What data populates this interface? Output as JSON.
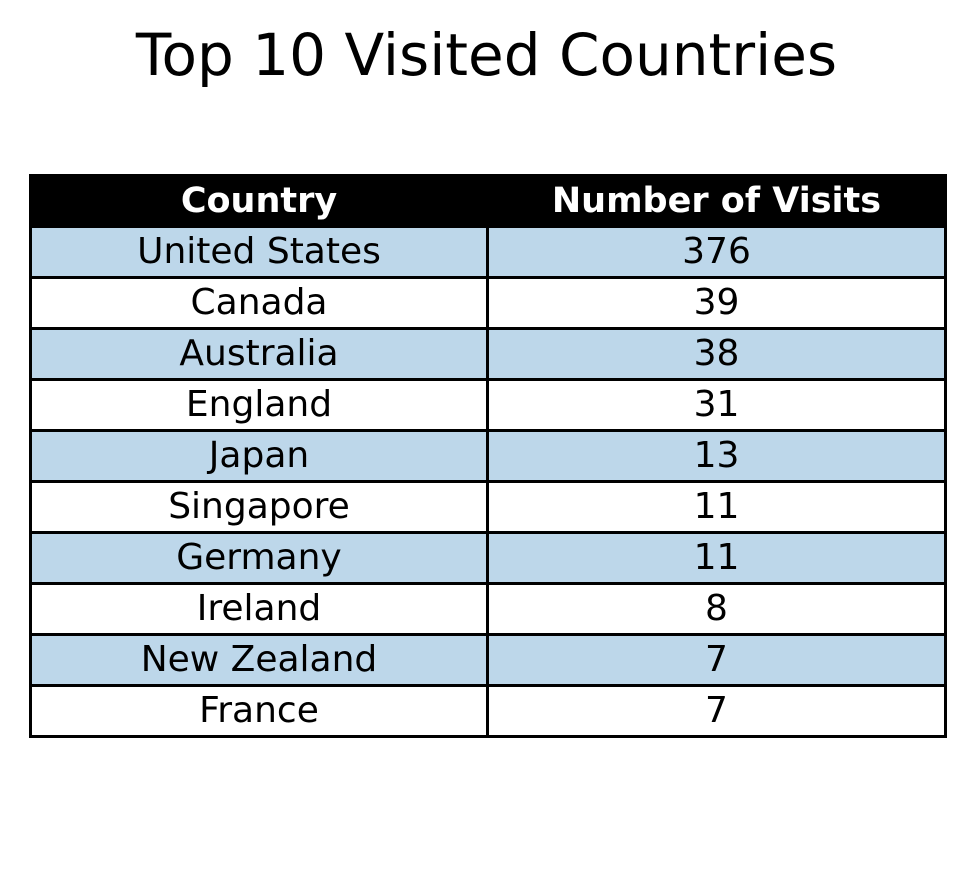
{
  "chart_data": {
    "type": "table",
    "title": "Top 10 Visited Countries",
    "columns": [
      "Country",
      "Number of Visits"
    ],
    "rows": [
      [
        "United States",
        376
      ],
      [
        "Canada",
        39
      ],
      [
        "Australia",
        38
      ],
      [
        "England",
        31
      ],
      [
        "Japan",
        13
      ],
      [
        "Singapore",
        11
      ],
      [
        "Germany",
        11
      ],
      [
        "Ireland",
        8
      ],
      [
        "New Zealand",
        7
      ],
      [
        "France",
        7
      ]
    ],
    "header_background": "#000000",
    "header_text_color": "#ffffff",
    "stripe_color": "#bdd7ea",
    "row_background": "#ffffff",
    "border_color": "#000000"
  }
}
